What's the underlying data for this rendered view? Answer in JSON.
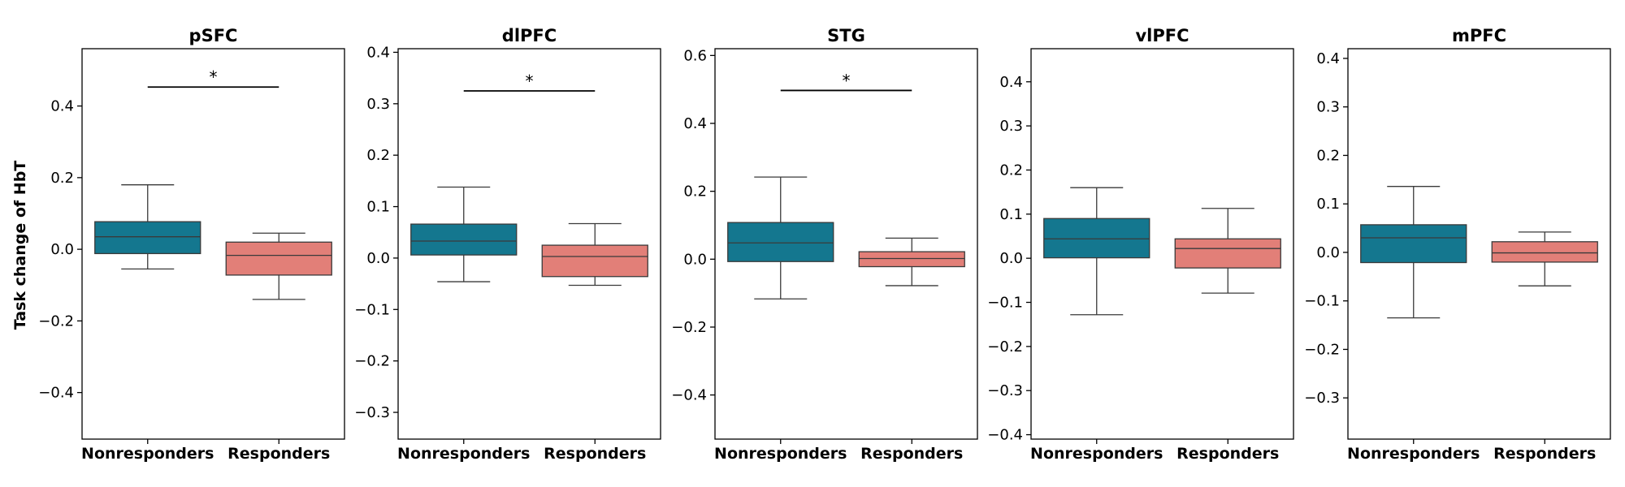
{
  "chart_data": {
    "type": "box",
    "ylabel": "Task change of HbT",
    "categories": [
      "Nonresponders",
      "Responders"
    ],
    "colors": {
      "Nonresponders": "#14778f",
      "Responders": "#e27f78"
    },
    "panels": [
      {
        "title": "pSFC",
        "ylim": [
          -0.53,
          0.56
        ],
        "yticks": [
          -0.4,
          -0.2,
          0.0,
          0.2,
          0.4
        ],
        "ytick_labels": [
          "−0.4",
          "−0.2",
          "0.0",
          "0.2",
          "0.4"
        ],
        "boxes": [
          {
            "category": "Nonresponders",
            "whislo": -0.055,
            "q1": -0.012,
            "median": 0.035,
            "q3": 0.077,
            "whishi": 0.18
          },
          {
            "category": "Responders",
            "whislo": -0.14,
            "q1": -0.072,
            "median": -0.017,
            "q3": 0.02,
            "whishi": 0.045
          }
        ],
        "significance": {
          "y": 0.453,
          "label": "*"
        }
      },
      {
        "title": "dlPFC",
        "ylim": [
          -0.352,
          0.407
        ],
        "yticks": [
          -0.3,
          -0.2,
          -0.1,
          0.0,
          0.1,
          0.2,
          0.3,
          0.4
        ],
        "ytick_labels": [
          "−0.3",
          "−0.2",
          "−0.1",
          "0.0",
          "0.1",
          "0.2",
          "0.3",
          "0.4"
        ],
        "boxes": [
          {
            "category": "Nonresponders",
            "whislo": -0.046,
            "q1": 0.006,
            "median": 0.033,
            "q3": 0.066,
            "whishi": 0.138
          },
          {
            "category": "Responders",
            "whislo": -0.053,
            "q1": -0.036,
            "median": 0.003,
            "q3": 0.025,
            "whishi": 0.067
          }
        ],
        "significance": {
          "y": 0.325,
          "label": "*"
        }
      },
      {
        "title": "STG",
        "ylim": [
          -0.53,
          0.62
        ],
        "yticks": [
          -0.4,
          -0.2,
          0.0,
          0.2,
          0.4,
          0.6
        ],
        "ytick_labels": [
          "−0.4",
          "−0.2",
          "0.0",
          "0.2",
          "0.4",
          "0.6"
        ],
        "boxes": [
          {
            "category": "Nonresponders",
            "whislo": -0.117,
            "q1": -0.007,
            "median": 0.048,
            "q3": 0.108,
            "whishi": 0.242
          },
          {
            "category": "Responders",
            "whislo": -0.078,
            "q1": -0.022,
            "median": 0.002,
            "q3": 0.022,
            "whishi": 0.062
          }
        ],
        "significance": {
          "y": 0.497,
          "label": "*"
        }
      },
      {
        "title": "vlPFC",
        "ylim": [
          -0.41,
          0.475
        ],
        "yticks": [
          -0.4,
          -0.3,
          -0.2,
          -0.1,
          0.0,
          0.1,
          0.2,
          0.3,
          0.4
        ],
        "ytick_labels": [
          "−0.4",
          "−0.3",
          "−0.2",
          "−0.1",
          "0.0",
          "0.1",
          "0.2",
          "0.3",
          "0.4"
        ],
        "boxes": [
          {
            "category": "Nonresponders",
            "whislo": -0.128,
            "q1": 0.001,
            "median": 0.044,
            "q3": 0.09,
            "whishi": 0.16
          },
          {
            "category": "Responders",
            "whislo": -0.079,
            "q1": -0.022,
            "median": 0.022,
            "q3": 0.044,
            "whishi": 0.113
          }
        ],
        "significance": null
      },
      {
        "title": "mPFC",
        "ylim": [
          -0.385,
          0.42
        ],
        "yticks": [
          -0.3,
          -0.2,
          -0.1,
          0.0,
          0.1,
          0.2,
          0.3,
          0.4
        ],
        "ytick_labels": [
          "−0.3",
          "−0.2",
          "−0.1",
          "0.0",
          "0.1",
          "0.2",
          "0.3",
          "0.4"
        ],
        "boxes": [
          {
            "category": "Nonresponders",
            "whislo": -0.135,
            "q1": -0.021,
            "median": 0.03,
            "q3": 0.057,
            "whishi": 0.136
          },
          {
            "category": "Responders",
            "whislo": -0.069,
            "q1": -0.02,
            "median": -0.001,
            "q3": 0.022,
            "whishi": 0.042
          }
        ],
        "significance": null
      }
    ]
  }
}
